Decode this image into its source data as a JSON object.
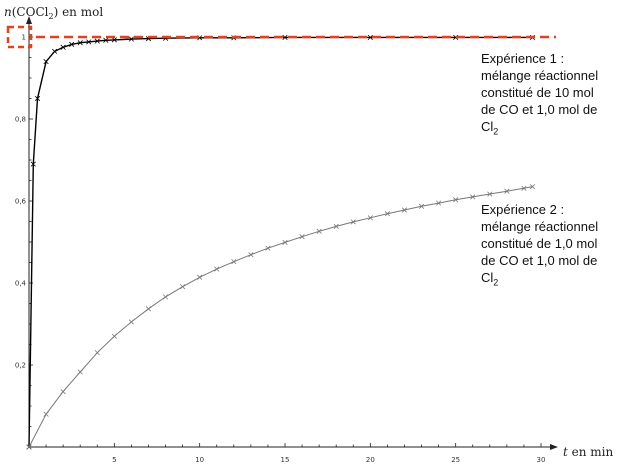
{
  "chart_data": {
    "type": "line",
    "ylabel": "n(COCl2) en mol",
    "ylabel_parts": {
      "func": "n",
      "open": "(",
      "species": "COCl",
      "sub": "2",
      "close": ")",
      "unit": " en mol"
    },
    "xlabel_parts": {
      "var": "t",
      "unit": " en min"
    },
    "xlim": [
      0,
      30
    ],
    "ylim": [
      0,
      1
    ],
    "x_ticks": [
      "5",
      "10",
      "15",
      "20",
      "25",
      "30"
    ],
    "y_ticks": [
      "0,2",
      "0,4",
      "0,6",
      "0,8",
      "1"
    ],
    "grid": false,
    "highlight_level": 1,
    "series": [
      {
        "id": "exp1",
        "x": [
          0,
          0.25,
          0.5,
          1,
          1.5,
          2,
          2.5,
          3,
          3.5,
          4,
          4.5,
          5,
          6,
          7,
          8,
          10,
          12,
          15,
          20,
          25,
          29.5
        ],
        "y": [
          0,
          0.69,
          0.85,
          0.94,
          0.965,
          0.975,
          0.982,
          0.986,
          0.988,
          0.99,
          0.992,
          0.993,
          0.995,
          0.996,
          0.997,
          0.998,
          0.998,
          0.999,
          0.999,
          0.999,
          0.999
        ]
      },
      {
        "id": "exp2",
        "x": [
          0,
          1,
          2,
          3,
          4,
          5,
          6,
          7,
          8,
          9,
          10,
          11,
          12,
          13,
          14,
          15,
          16,
          17,
          18,
          19,
          20,
          21,
          22,
          23,
          24,
          25,
          26,
          27,
          28,
          29,
          29.5
        ],
        "y": [
          0,
          0.08,
          0.135,
          0.183,
          0.23,
          0.27,
          0.305,
          0.337,
          0.366,
          0.391,
          0.414,
          0.434,
          0.452,
          0.469,
          0.485,
          0.499,
          0.513,
          0.526,
          0.538,
          0.549,
          0.559,
          0.569,
          0.578,
          0.587,
          0.595,
          0.603,
          0.61,
          0.617,
          0.624,
          0.631,
          0.635
        ]
      }
    ],
    "annotations": [
      {
        "id": "exp1",
        "lines": [
          "Expérience 1 :",
          "mélange réactionnel",
          "constitué de 10 mol",
          "de CO et 1,0 mol de",
          "Cl"
        ],
        "last_sub": "2"
      },
      {
        "id": "exp2",
        "lines": [
          "Expérience 2 :",
          "mélange réactionnel",
          "constitué de 1,0 mol",
          "de CO et 1,0 mol de",
          "Cl"
        ],
        "last_sub": "2"
      }
    ]
  }
}
